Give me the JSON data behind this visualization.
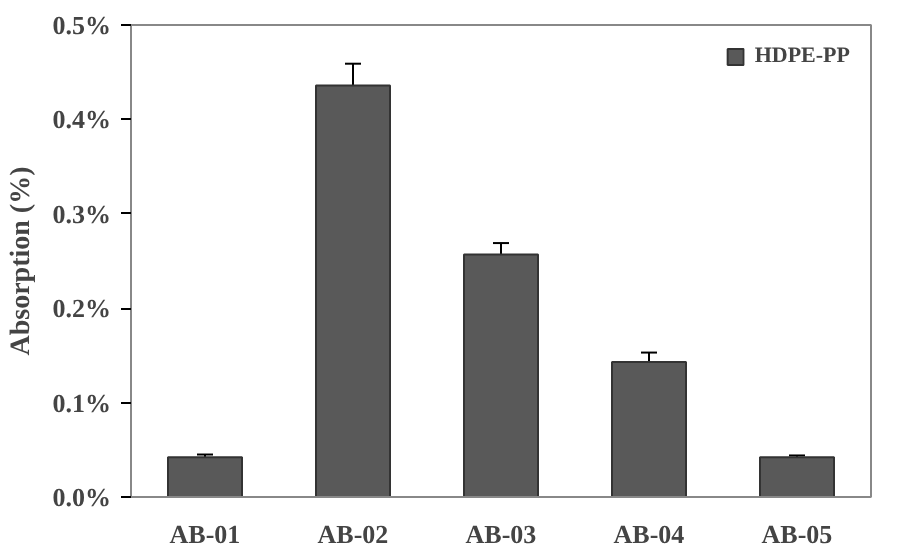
{
  "chart_data": {
    "type": "bar",
    "ylabel": "Absorption (%)",
    "categories": [
      "AB-01",
      "AB-02",
      "AB-03",
      "AB-04",
      "AB-05"
    ],
    "series": [
      {
        "name": "HDPE-PP",
        "color": "#595959",
        "values": [
          0.042,
          0.436,
          0.257,
          0.143,
          0.042
        ],
        "errors": [
          0.003,
          0.023,
          0.012,
          0.01,
          0.002
        ]
      }
    ],
    "ylim": [
      0,
      0.5
    ],
    "yticks": [
      {
        "value": 0,
        "label": "0.0%"
      },
      {
        "value": 0.1,
        "label": "0.1%"
      },
      {
        "value": 0.2,
        "label": "0.2%"
      },
      {
        "value": 0.3,
        "label": "0.3%"
      },
      {
        "value": 0.4,
        "label": "0.4%"
      },
      {
        "value": 0.5,
        "label": "0.5%"
      }
    ],
    "grid": false,
    "legend": "top right"
  }
}
